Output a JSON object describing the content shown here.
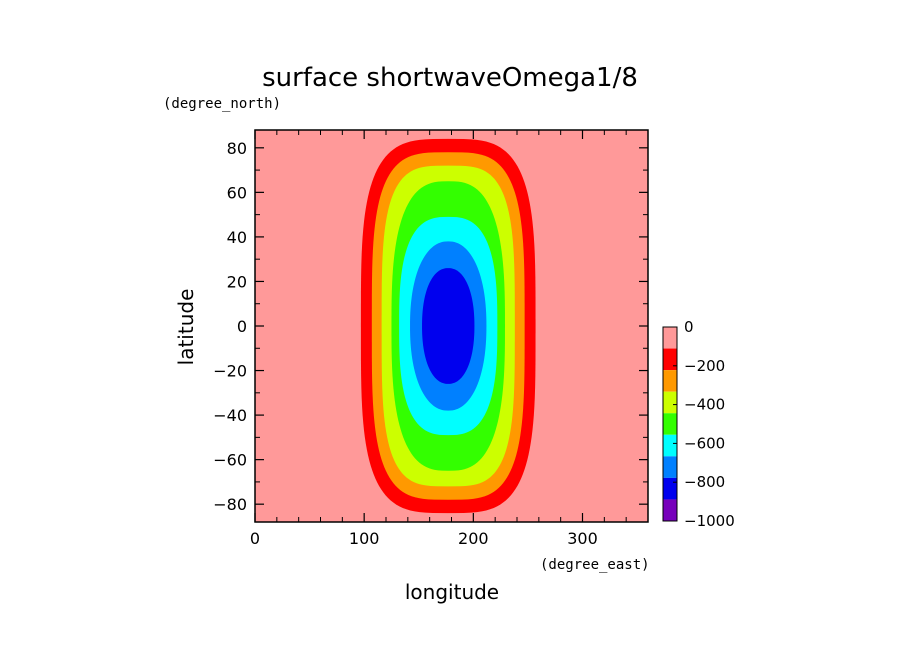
{
  "chart_data": {
    "type": "heatmap",
    "title": "surface shortwaveOmega1/8",
    "xlabel": "longitude",
    "ylabel": "latitude",
    "x_units": "(degree_east)",
    "y_units": "(degree_north)",
    "xlim": [
      0,
      360
    ],
    "ylim": [
      -88,
      88
    ],
    "x_ticks": [
      0,
      100,
      200,
      300
    ],
    "x_tick_labels": [
      "0",
      "100",
      "200",
      "300"
    ],
    "y_ticks": [
      80,
      60,
      40,
      20,
      0,
      -20,
      -40,
      -60,
      -80
    ],
    "y_tick_labels": [
      "80",
      "60",
      "40",
      "20",
      "0",
      "−20",
      "−40",
      "−60",
      "−80"
    ],
    "contour_field": {
      "center_longitude": 177,
      "center_latitude": 0,
      "max_value": -870,
      "levels": [
        {
          "range": [
            -200,
            0
          ],
          "color": "#ff9999",
          "lon_half_width": 180,
          "lat_half_height": 90
        },
        {
          "range": [
            -300,
            -200
          ],
          "color": "#ff0000",
          "lon_half_width": 80,
          "lat_half_height": 84
        },
        {
          "range": [
            -400,
            -300
          ],
          "color": "#ff9900",
          "lon_half_width": 70,
          "lat_half_height": 78
        },
        {
          "range": [
            -500,
            -400
          ],
          "color": "#ccff00",
          "lon_half_width": 61,
          "lat_half_height": 72
        },
        {
          "range": [
            -600,
            -500
          ],
          "color": "#33ff00",
          "lon_half_width": 52,
          "lat_half_height": 65
        },
        {
          "range": [
            -700,
            -600
          ],
          "color": "#00ffff",
          "lon_half_width": 45,
          "lat_half_height": 49
        },
        {
          "range": [
            -800,
            -700
          ],
          "color": "#0080ff",
          "lon_half_width": 35,
          "lat_half_height": 38
        },
        {
          "range": [
            -900,
            -800
          ],
          "color": "#0000ee",
          "lon_half_width": 24,
          "lat_half_height": 26
        }
      ]
    },
    "colorbar": {
      "levels": [
        {
          "color": "#ff9999"
        },
        {
          "color": "#ff0000"
        },
        {
          "color": "#ff9900"
        },
        {
          "color": "#ccff00"
        },
        {
          "color": "#33ff00"
        },
        {
          "color": "#00ffff"
        },
        {
          "color": "#0080ff"
        },
        {
          "color": "#0000ee"
        },
        {
          "color": "#7700bb"
        }
      ],
      "tick_labels": [
        "0",
        "−200",
        "−400",
        "−600",
        "−800",
        "−1000"
      ]
    }
  }
}
